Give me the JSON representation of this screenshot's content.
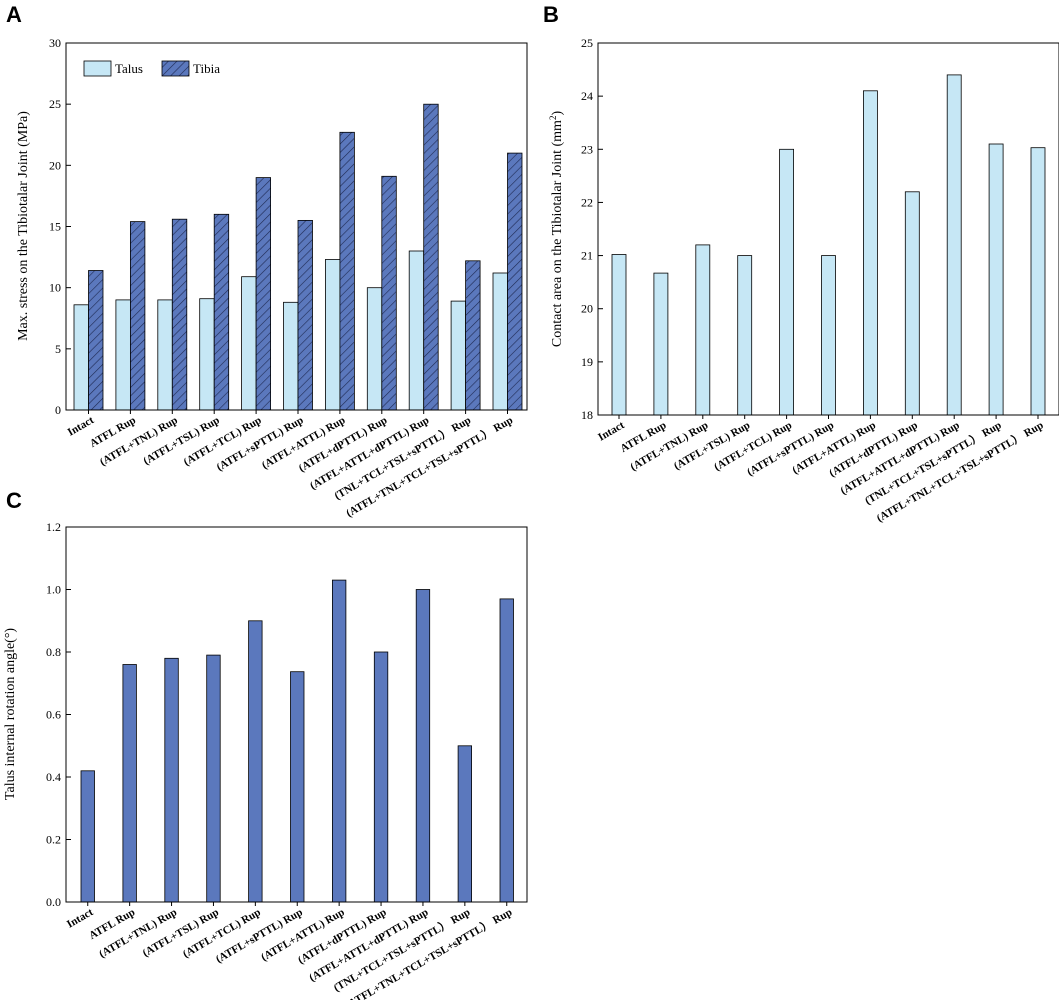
{
  "panels": [
    "A",
    "B",
    "C"
  ],
  "legend": {
    "talus": "Talus",
    "tibia": "Tibia"
  },
  "categories": [
    "Intact",
    "ATFL Rup",
    "(ATFL+TNL) Rup",
    "(ATFL+TSL) Rup",
    "(ATFL+TCL) Rup",
    "(ATFL+sPTTL) Rup",
    "(ATFL+ATTL) Rup",
    "(ATFL+dPTTL) Rup",
    "(ATFL+ATTL+dPTTL) Rup",
    "(TNL+TCL+TSL+sPTTL） Rup",
    "(ATFL+TNL+TCL+TSL+sPTTL） Rup"
  ],
  "chart_data": [
    {
      "panel": "A",
      "type": "bar",
      "ylabel": "Max. stress on the Tibiotalar Joint (MPa)",
      "ylim": [
        0,
        30
      ],
      "yticks": [
        0,
        5,
        10,
        15,
        20,
        25,
        30
      ],
      "legend_position": "top-left",
      "series": [
        {
          "name": "Talus",
          "color": "#c6e7f5",
          "pattern": "solid",
          "values": [
            8.6,
            9.0,
            9.0,
            9.1,
            10.9,
            8.8,
            12.3,
            10.0,
            13.0,
            8.9,
            11.2
          ]
        },
        {
          "name": "Tibia",
          "color": "#5b78bd",
          "pattern": "hatch",
          "values": [
            11.4,
            15.4,
            15.6,
            16.0,
            19.0,
            15.5,
            22.7,
            19.1,
            25.0,
            12.2,
            21.0
          ]
        }
      ]
    },
    {
      "panel": "B",
      "type": "bar",
      "ylabel_main": "Contact area on the Tibiotalar Joint (mm",
      "ylabel_sup": "2",
      "ylabel_end": ")",
      "ylim": [
        18,
        25
      ],
      "yticks": [
        18,
        19,
        20,
        21,
        22,
        23,
        24,
        25
      ],
      "series": [
        {
          "name": "Contact area",
          "color": "#c6e7f5",
          "pattern": "solid",
          "values": [
            21.02,
            20.67,
            21.2,
            21.0,
            23.0,
            21.0,
            24.1,
            22.2,
            24.4,
            23.1,
            23.03
          ]
        }
      ]
    },
    {
      "panel": "C",
      "type": "bar",
      "ylabel": "Talus internal rotation angle(°)",
      "ylim": [
        0,
        1.2
      ],
      "yticks": [
        "0.0",
        "0.2",
        "0.4",
        "0.6",
        "0.8",
        "1.0",
        "1.2"
      ],
      "series": [
        {
          "name": "Rotation angle",
          "color": "#5b78bd",
          "pattern": "solid",
          "values": [
            0.42,
            0.76,
            0.78,
            0.79,
            0.9,
            0.737,
            1.03,
            0.8,
            1.0,
            0.5,
            0.97
          ]
        }
      ]
    }
  ]
}
